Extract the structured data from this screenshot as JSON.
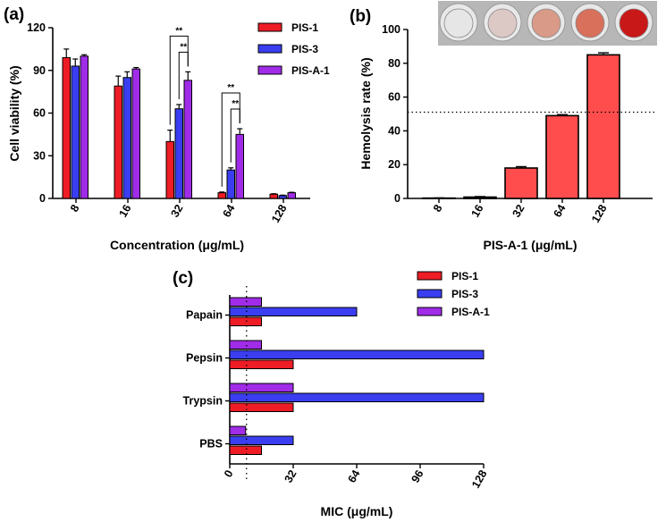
{
  "colors": {
    "PIS-1": "#ee1c25",
    "PIS-3": "#3a3ef0",
    "PIS-A-1": "#a02ce8",
    "panel_b_bar": "#ff4d4d",
    "axis": "#000000"
  },
  "chart_data": [
    {
      "panel": "(a)",
      "type": "bar",
      "title": "",
      "xlabel": "Concentration (μg/mL)",
      "ylabel": "Cell viability (%)",
      "categories": [
        "8",
        "16",
        "32",
        "64",
        "128"
      ],
      "ylim": [
        0,
        120
      ],
      "yticks": [
        "0",
        "30",
        "60",
        "90",
        "120"
      ],
      "series": [
        {
          "name": "PIS-1",
          "values": [
            99,
            79,
            40,
            4,
            3
          ],
          "errors": [
            6,
            7,
            8,
            0.5,
            0.3
          ]
        },
        {
          "name": "PIS-3",
          "values": [
            93,
            85,
            63,
            20,
            2
          ],
          "errors": [
            5,
            4,
            3,
            1.5,
            0.3
          ]
        },
        {
          "name": "PIS-A-1",
          "values": [
            100,
            91,
            83,
            45,
            4
          ],
          "errors": [
            1,
            1,
            6,
            4,
            0.3
          ]
        }
      ],
      "annotations": [
        {
          "label": "**",
          "category": "32",
          "between": [
            "PIS-1",
            "PIS-A-1"
          ]
        },
        {
          "label": "**",
          "category": "32",
          "between": [
            "PIS-3",
            "PIS-A-1"
          ]
        },
        {
          "label": "**",
          "category": "64",
          "between": [
            "PIS-1",
            "PIS-A-1"
          ]
        },
        {
          "label": "**",
          "category": "64",
          "between": [
            "PIS-3",
            "PIS-A-1"
          ]
        }
      ],
      "legend": [
        "PIS-1",
        "PIS-3",
        "PIS-A-1"
      ],
      "legend_position": "top-right"
    },
    {
      "panel": "(b)",
      "type": "bar",
      "title": "",
      "xlabel": "PIS-A-1 (μg/mL)",
      "ylabel": "Hemolysis rate (%)",
      "categories": [
        "8",
        "16",
        "32",
        "64",
        "128"
      ],
      "values": [
        0.2,
        0.8,
        18,
        49,
        85
      ],
      "errors": [
        0.1,
        0.3,
        0.8,
        0.6,
        1.2
      ],
      "ylim": [
        0,
        100
      ],
      "yticks": [
        "0",
        "20",
        "40",
        "60",
        "80",
        "100"
      ],
      "reference_line": {
        "y": 50,
        "style": "dotted"
      },
      "photo_inset": {
        "position": "top",
        "well_colors": [
          "#e6e6e6",
          "#dcc9c6",
          "#d99a88",
          "#d8705c",
          "#c81818"
        ]
      }
    },
    {
      "panel": "(c)",
      "type": "bar",
      "orientation": "horizontal",
      "title": "",
      "xlabel": "MIC (μg/mL)",
      "ylabel": "",
      "categories": [
        "Papain",
        "Pepsin",
        "Trypsin",
        "PBS"
      ],
      "xlim": [
        0,
        128
      ],
      "xticks": [
        "0",
        "32",
        "64",
        "96",
        "128"
      ],
      "reference_line": {
        "x": 8,
        "style": "dotted"
      },
      "series": [
        {
          "name": "PIS-1",
          "values": [
            16,
            32,
            32,
            16
          ]
        },
        {
          "name": "PIS-3",
          "values": [
            64,
            128,
            128,
            32
          ]
        },
        {
          "name": "PIS-A-1",
          "values": [
            16,
            16,
            32,
            8
          ]
        }
      ],
      "legend": [
        "PIS-1",
        "PIS-3",
        "PIS-A-1"
      ],
      "legend_position": "top-right"
    }
  ]
}
